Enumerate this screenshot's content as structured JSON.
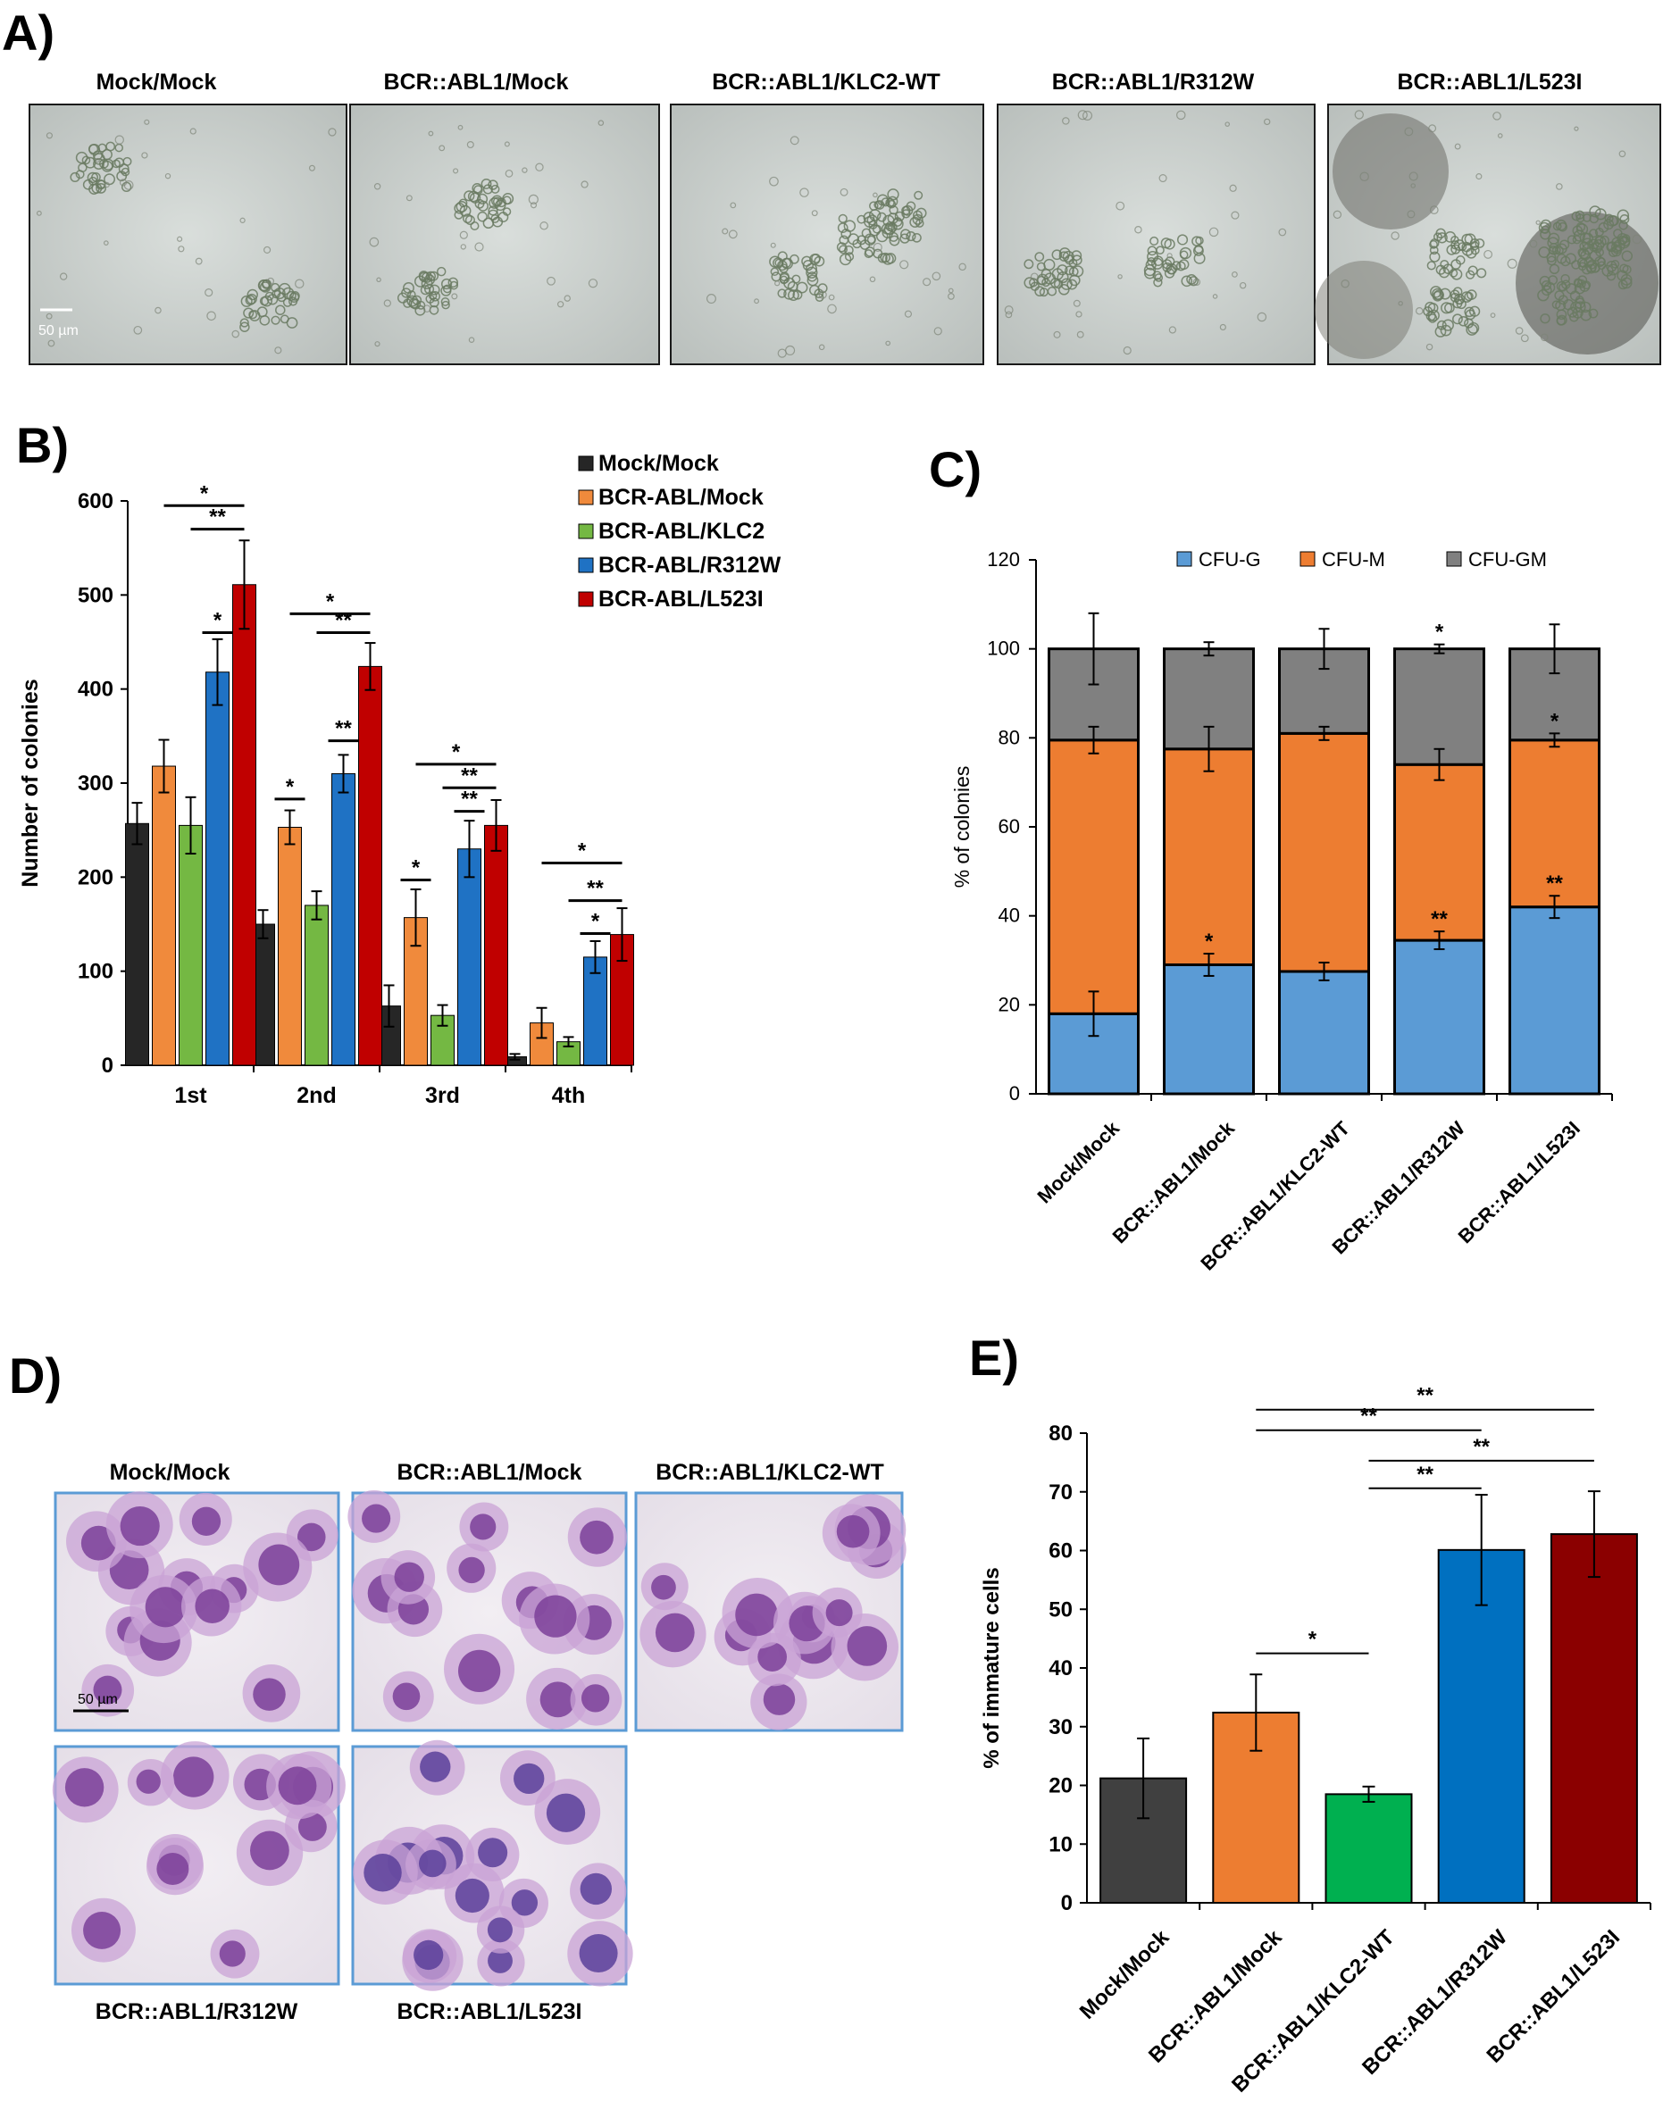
{
  "panels": {
    "A": {
      "letter": "A)",
      "images": [
        {
          "label": "Mock/Mock",
          "scale_bar": "50 µm",
          "texture": "sparse"
        },
        {
          "label": "BCR::ABL1/Mock",
          "texture": "sparse"
        },
        {
          "label": "BCR::ABL1/KLC2-WT",
          "texture": "medium"
        },
        {
          "label": "BCR::ABL1/R312W",
          "texture": "sparse"
        },
        {
          "label": "BCR::ABL1/L523I",
          "texture": "dense"
        }
      ]
    },
    "B": {
      "letter": "B)"
    },
    "C": {
      "letter": "C)"
    },
    "D": {
      "letter": "D)",
      "images": [
        {
          "label": "Mock/Mock",
          "scale_bar": "50 µm",
          "label_pos": "top"
        },
        {
          "label": "BCR::ABL1/Mock",
          "label_pos": "top"
        },
        {
          "label": "BCR::ABL1/KLC2-WT",
          "label_pos": "top"
        },
        {
          "label": "BCR::ABL1/R312W",
          "label_pos": "bottom"
        },
        {
          "label": "BCR::ABL1/L523I",
          "label_pos": "bottom"
        }
      ]
    },
    "E": {
      "letter": "E)"
    }
  },
  "chart_data": [
    {
      "panel": "B",
      "type": "bar",
      "categories": [
        "1st",
        "2nd",
        "3rd",
        "4th"
      ],
      "ylabel": "Number of colonies",
      "ylim": [
        0,
        600
      ],
      "yticks": [
        0,
        100,
        200,
        300,
        400,
        500,
        600
      ],
      "legend": "top-right",
      "series": [
        {
          "name": "Mock/Mock",
          "color": "#262626",
          "values": [
            257,
            150,
            63,
            9
          ],
          "errors": [
            22,
            15,
            22,
            3
          ]
        },
        {
          "name": "BCR-ABL/Mock",
          "color": "#f08a3c",
          "values": [
            318,
            253,
            157,
            45
          ],
          "errors": [
            28,
            18,
            30,
            16
          ]
        },
        {
          "name": "BCR-ABL/KLC2",
          "color": "#74b843",
          "values": [
            255,
            170,
            53,
            25
          ],
          "errors": [
            30,
            15,
            11,
            5
          ]
        },
        {
          "name": "BCR-ABL/R312W",
          "color": "#1f72c4",
          "values": [
            418,
            310,
            230,
            115
          ],
          "errors": [
            35,
            20,
            30,
            17
          ]
        },
        {
          "name": "BCR-ABL/L523I",
          "color": "#c00000",
          "values": [
            511,
            424,
            255,
            139
          ],
          "errors": [
            47,
            25,
            27,
            28
          ]
        }
      ],
      "annotations": [
        {
          "text": "*",
          "group": 0,
          "from": 1,
          "to": 4,
          "y": 595
        },
        {
          "text": "**",
          "group": 0,
          "from": 2,
          "to": 4,
          "y": 570
        },
        {
          "text": "*",
          "group": 0,
          "from": 3,
          "to": 3,
          "y": 460
        },
        {
          "text": "*",
          "group": 1,
          "from": 1,
          "to": 4,
          "y": 480
        },
        {
          "text": "**",
          "group": 1,
          "from": 2,
          "to": 4,
          "y": 460
        },
        {
          "text": "**",
          "group": 1,
          "from": 3,
          "to": 3,
          "y": 345
        },
        {
          "text": "*",
          "group": 1,
          "from": 1,
          "to": 1,
          "y": 283
        },
        {
          "text": "*",
          "group": 2,
          "from": 1,
          "to": 4,
          "y": 320
        },
        {
          "text": "**",
          "group": 2,
          "from": 2,
          "to": 4,
          "y": 295
        },
        {
          "text": "**",
          "group": 2,
          "from": 3,
          "to": 3,
          "y": 270
        },
        {
          "text": "*",
          "group": 2,
          "from": 1,
          "to": 1,
          "y": 197
        },
        {
          "text": "*",
          "group": 3,
          "from": 1,
          "to": 4,
          "y": 215
        },
        {
          "text": "**",
          "group": 3,
          "from": 2,
          "to": 4,
          "y": 175
        },
        {
          "text": "*",
          "group": 3,
          "from": 3,
          "to": 3,
          "y": 140
        }
      ]
    },
    {
      "panel": "C",
      "type": "bar",
      "stacked": true,
      "categories": [
        "Mock/Mock",
        "BCR::ABL1/Mock",
        "BCR::ABL1/KLC2-WT",
        "BCR::ABL1/R312W",
        "BCR::ABL1/L523I"
      ],
      "ylabel": "% of colonies",
      "ylim": [
        0,
        120
      ],
      "yticks": [
        0,
        20,
        40,
        60,
        80,
        100,
        120
      ],
      "legend": "top",
      "series": [
        {
          "name": "CFU-G",
          "color": "#5b9bd5",
          "values": [
            18,
            29,
            27.5,
            34.5,
            42
          ],
          "errors": [
            5,
            2.5,
            2,
            2,
            2.5
          ]
        },
        {
          "name": "CFU-M",
          "color": "#ed7d31",
          "values": [
            61.5,
            48.5,
            53.5,
            39.5,
            37.5
          ],
          "errors": [
            3,
            5,
            1.5,
            3.5,
            1.5
          ]
        },
        {
          "name": "CFU-GM",
          "color": "#808080",
          "values": [
            20.5,
            22.5,
            19,
            26,
            20.5
          ],
          "errors": [
            8,
            1.5,
            4.5,
            1,
            5.5
          ]
        }
      ],
      "annotations": [
        {
          "text": "*",
          "bar": 1,
          "series": 0
        },
        {
          "text": "**",
          "bar": 3,
          "series": 0
        },
        {
          "text": "**",
          "bar": 4,
          "series": 0
        },
        {
          "text": "*",
          "bar": 3,
          "series": 2
        },
        {
          "text": "*",
          "bar": 4,
          "series": 1
        }
      ]
    },
    {
      "panel": "E",
      "type": "bar",
      "categories": [
        "Mock/Mock",
        "BCR::ABL1/Mock",
        "BCR::ABL1/KLC2-WT",
        "BCR::ABL1/R312W",
        "BCR::ABL1/L523I"
      ],
      "ylabel": "% of immature cells",
      "ylim": [
        0,
        80
      ],
      "yticks": [
        0,
        10,
        20,
        30,
        40,
        50,
        60,
        70,
        80
      ],
      "colors": [
        "#404040",
        "#ed7d31",
        "#00b050",
        "#0070c0",
        "#8b0000"
      ],
      "values": [
        21.2,
        32.4,
        18.5,
        60.1,
        62.8
      ],
      "errors": [
        6.8,
        6.5,
        1.3,
        9.4,
        7.3
      ],
      "annotations": [
        {
          "text": "**",
          "from": 1,
          "to": 4,
          "y": 84
        },
        {
          "text": "**",
          "from": 1,
          "to": 3,
          "y": 80.5
        },
        {
          "text": "**",
          "from": 2,
          "to": 4,
          "y": 75.3
        },
        {
          "text": "**",
          "from": 2,
          "to": 3,
          "y": 70.6
        },
        {
          "text": "*",
          "from": 1,
          "to": 2,
          "y": 42.5
        }
      ]
    }
  ]
}
